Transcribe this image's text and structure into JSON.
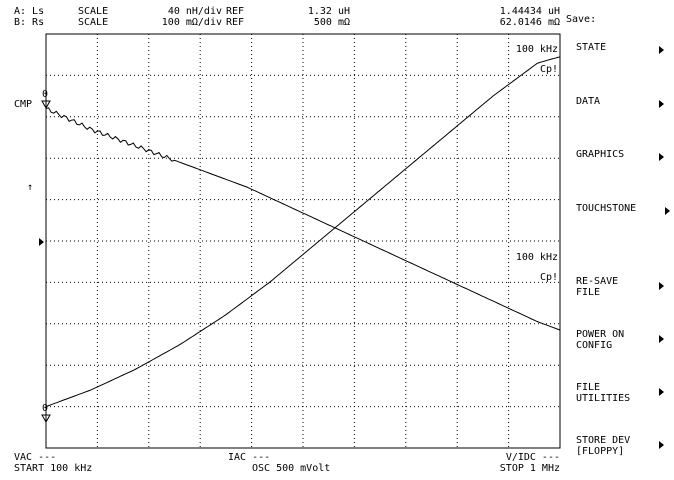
{
  "header": {
    "trace_a": {
      "channel": "A: Ls",
      "mode": "SCALE",
      "scale": "40 nH/div",
      "ref_label": "REF",
      "ref_value": "1.32 uH",
      "marker": "1.44434 uH"
    },
    "trace_b": {
      "channel": "B: Rs",
      "mode": "SCALE",
      "scale": "100 mΩ/div",
      "ref_label": "REF",
      "ref_value": "500 mΩ",
      "marker": "62.0146 mΩ"
    }
  },
  "plot": {
    "marker_freq_a": "100 kHz",
    "marker_param_a": "Cp!",
    "marker_freq_b": "100 kHz",
    "marker_param_b": "Cp!",
    "cmp_label": "CMP",
    "ref_marker_top": "0",
    "ref_marker_bottom": "0",
    "up_arrow": "↑"
  },
  "footer": {
    "vac": "VAC ---",
    "start": "START 100 kHz",
    "iac": "IAC ---",
    "osc": "OSC 500 mVolt",
    "vidc": "V/IDC ---",
    "stop": "STOP 1 MHz"
  },
  "menu": {
    "title": "Save:",
    "items": [
      {
        "label": "STATE"
      },
      {
        "label": "DATA"
      },
      {
        "label": "GRAPHICS"
      },
      {
        "label": "TOUCHSTONE"
      },
      {
        "label": "RE-SAVE\nFILE"
      },
      {
        "label": "POWER ON\nCONFIG"
      },
      {
        "label": "FILE\nUTILITIES"
      },
      {
        "label": "STORE DEV\n[FLOPPY]"
      }
    ]
  },
  "chart_data": {
    "type": "line",
    "x_start": "START 100 kHz",
    "x_stop": "STOP 1 MHz",
    "grid": true,
    "series": [
      {
        "name": "A: Ls",
        "scale": "40 nH/div",
        "ref": "1.32 uH",
        "marker_value": "1.44434 uH",
        "y_div": [
          -4.0,
          -3.8,
          -3.6,
          -3.35,
          -3.1,
          -2.8,
          -2.5,
          -2.15,
          -1.8,
          -1.4,
          -1.0,
          -0.55,
          -0.1,
          0.35,
          0.8,
          1.25,
          1.7,
          2.15,
          2.6,
          3.05,
          3.5,
          3.9,
          4.3,
          4.45
        ]
      },
      {
        "name": "B: Rs",
        "scale": "100 mΩ/div",
        "ref": "500 mΩ",
        "marker_value": "62.0146 mΩ",
        "y_div": [
          3.2,
          2.95,
          2.7,
          2.5,
          2.3,
          2.1,
          1.9,
          1.7,
          1.5,
          1.3,
          1.05,
          0.8,
          0.55,
          0.3,
          0.05,
          -0.2,
          -0.45,
          -0.7,
          -0.95,
          -1.2,
          -1.45,
          -1.7,
          -1.95,
          -2.15
        ]
      }
    ]
  }
}
